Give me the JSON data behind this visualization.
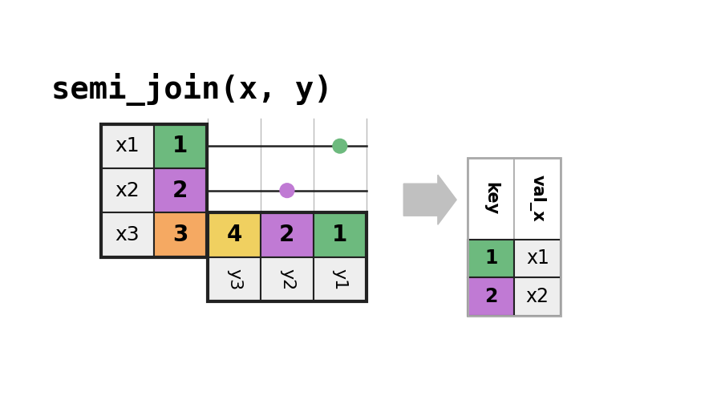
{
  "title": "semi_join(x, y)",
  "title_fontsize": 28,
  "title_font": "monospace",
  "bg_color": "#ffffff",
  "cell_light": "#eeeeee",
  "cell_green": "#6dba7e",
  "cell_purple": "#c07ad4",
  "cell_orange": "#f5a962",
  "cell_yellow": "#f0d060",
  "cell_border": "#222222",
  "cell_border_thin": "#aaaaaa",
  "arrow_color": "#c0c0c0",
  "line_color_dark": "#222222",
  "line_color_light": "#bbbbbb",
  "dot_green": "#6dba7e",
  "dot_purple": "#c07ad4",
  "x_table": {
    "rows": [
      {
        "val_x": "x1",
        "key": "1",
        "key_color": "#6dba7e"
      },
      {
        "val_x": "x2",
        "key": "2",
        "key_color": "#c07ad4"
      },
      {
        "val_x": "x3",
        "key": "3",
        "key_color": "#f5a962"
      }
    ]
  },
  "y_table": {
    "cols": [
      {
        "key": "4",
        "key_color": "#f0d060",
        "label": "y3"
      },
      {
        "key": "2",
        "key_color": "#c07ad4",
        "label": "y2"
      },
      {
        "key": "1",
        "key_color": "#6dba7e",
        "label": "y1"
      }
    ]
  },
  "result_table": {
    "headers": [
      "key",
      "val_x"
    ],
    "rows": [
      {
        "key": "1",
        "key_color": "#6dba7e",
        "val_x": "x1"
      },
      {
        "key": "2",
        "key_color": "#c07ad4",
        "val_x": "x2"
      }
    ]
  }
}
